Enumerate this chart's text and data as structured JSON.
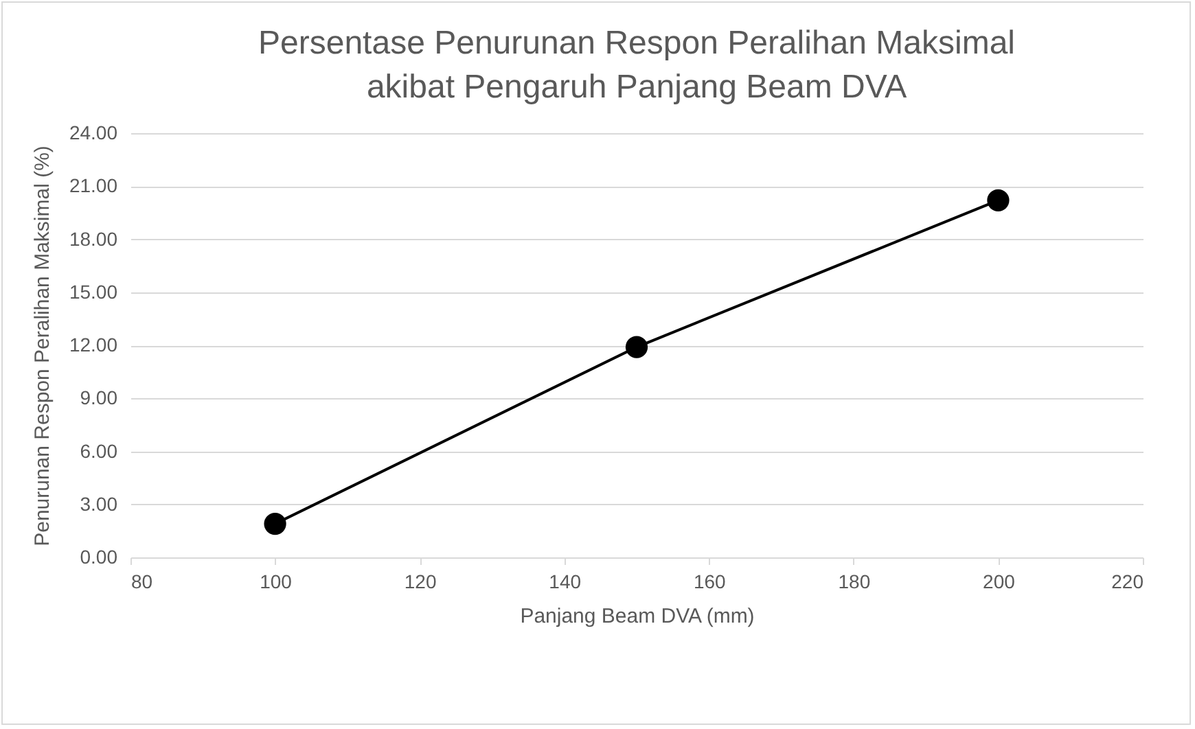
{
  "chart_data": {
    "type": "line",
    "title": "Persentase Penurunan Respon Peralihan Maksimal akibat Pengaruh Panjang Beam DVA",
    "xlabel": "Panjang Beam DVA (mm)",
    "ylabel": "Penurunan Respon Peralihan Maksimal (%)",
    "x": [
      100,
      150,
      200
    ],
    "series": [
      {
        "color": "#000000",
        "values": [
          1.9,
          11.9,
          20.2
        ]
      }
    ],
    "xlim": [
      80,
      220
    ],
    "xticks": [
      80,
      100,
      120,
      140,
      160,
      180,
      200,
      220
    ],
    "ylim": [
      0,
      24
    ],
    "yticks": [
      {
        "value": 0,
        "label": "0.00"
      },
      {
        "value": 3,
        "label": "3.00"
      },
      {
        "value": 6,
        "label": "6.00"
      },
      {
        "value": 9,
        "label": "9.00"
      },
      {
        "value": 12,
        "label": "12.00"
      },
      {
        "value": 15,
        "label": "15.00"
      },
      {
        "value": 18,
        "label": "18.00"
      },
      {
        "value": 21,
        "label": "21.00"
      },
      {
        "value": 24,
        "label": "24.00"
      }
    ],
    "grid": "y",
    "marker": "circle",
    "line_style": "solid",
    "legend": false
  }
}
